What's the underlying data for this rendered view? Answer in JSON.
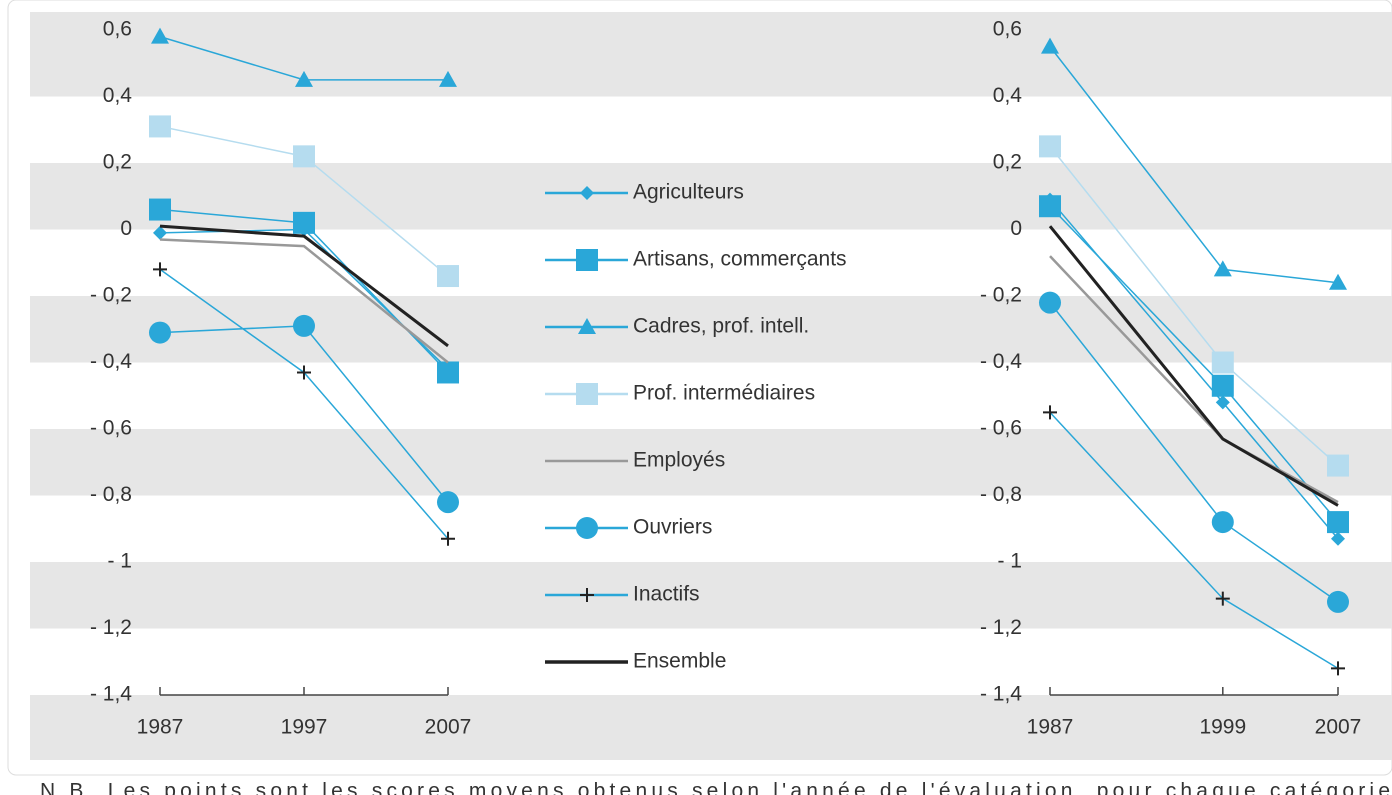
{
  "chart_data": [
    {
      "type": "line",
      "x": [
        1987,
        1997,
        2007
      ],
      "xlim": [
        1987,
        2007
      ],
      "xticks": [
        1987,
        1997,
        2007
      ],
      "ylim": [
        -1.4,
        0.6
      ],
      "yticks": [
        {
          "value": 0.6,
          "label": "0,6"
        },
        {
          "value": 0.4,
          "label": "0,4"
        },
        {
          "value": 0.2,
          "label": "0,2"
        },
        0,
        {
          "value": -0.2,
          "label": "- 0,2"
        },
        {
          "value": -0.4,
          "label": "- 0,4"
        },
        {
          "value": -0.6,
          "label": "- 0,6"
        },
        {
          "value": -0.8,
          "label": "- 0,8"
        },
        {
          "value": -1,
          "label": "- 1"
        },
        {
          "value": -1.2,
          "label": "- 1,2"
        },
        {
          "value": -1.4,
          "label": "- 1,4"
        }
      ],
      "series": [
        {
          "name": "Agriculteurs",
          "color": "#2aa7d8",
          "marker": "diamond",
          "values": [
            -0.01,
            0.0,
            -0.42
          ]
        },
        {
          "name": "Artisans, commerçants",
          "color": "#2aa7d8",
          "marker": "square",
          "values": [
            0.06,
            0.02,
            -0.43
          ]
        },
        {
          "name": "Cadres, prof. intell.",
          "color": "#2aa7d8",
          "marker": "triangle",
          "values": [
            0.58,
            0.45,
            0.45
          ]
        },
        {
          "name": "Prof. intermédiaires",
          "color": "#b5dcef",
          "marker": "square",
          "values": [
            0.31,
            0.22,
            -0.14
          ]
        },
        {
          "name": "Employés",
          "color": "#999999",
          "marker": "none",
          "values": [
            -0.03,
            -0.05,
            -0.4
          ]
        },
        {
          "name": "Ouvriers",
          "color": "#2aa7d8",
          "marker": "circle",
          "values": [
            -0.31,
            -0.29,
            -0.82
          ]
        },
        {
          "name": "Inactifs",
          "color": "#2aa7d8",
          "marker": "plus",
          "values": [
            -0.12,
            -0.43,
            -0.93
          ]
        },
        {
          "name": "Ensemble",
          "color": "#222222",
          "marker": "none",
          "values": [
            0.01,
            -0.02,
            -0.35
          ]
        }
      ]
    },
    {
      "type": "line",
      "x": [
        1987,
        1999,
        2007
      ],
      "xlim": [
        1987,
        2007
      ],
      "xticks": [
        1987,
        1999,
        2007
      ],
      "ylim": [
        -1.4,
        0.6
      ],
      "yticks": [
        {
          "value": 0.6,
          "label": "0,6"
        },
        {
          "value": 0.4,
          "label": "0,4"
        },
        {
          "value": 0.2,
          "label": "0,2"
        },
        0,
        {
          "value": -0.2,
          "label": "- 0,2"
        },
        {
          "value": -0.4,
          "label": "- 0,4"
        },
        {
          "value": -0.6,
          "label": "- 0,6"
        },
        {
          "value": -0.8,
          "label": "- 0,8"
        },
        {
          "value": -1,
          "label": "- 1"
        },
        {
          "value": -1.2,
          "label": "- 1,2"
        },
        {
          "value": -1.4,
          "label": "- 1,4"
        }
      ],
      "series": [
        {
          "color": "#2aa7d8",
          "marker": "diamond",
          "values": [
            0.09,
            -0.52,
            -0.93
          ]
        },
        {
          "color": "#2aa7d8",
          "marker": "square",
          "values": [
            0.07,
            -0.47,
            -0.88
          ]
        },
        {
          "color": "#2aa7d8",
          "marker": "triangle",
          "values": [
            0.55,
            -0.12,
            -0.16
          ]
        },
        {
          "color": "#b5dcef",
          "marker": "square",
          "values": [
            0.25,
            -0.4,
            -0.71
          ]
        },
        {
          "color": "#999999",
          "marker": "none",
          "values": [
            -0.08,
            -0.63,
            -0.82
          ]
        },
        {
          "color": "#2aa7d8",
          "marker": "circle",
          "values": [
            -0.22,
            -0.88,
            -1.12
          ]
        },
        {
          "color": "#2aa7d8",
          "marker": "plus",
          "values": [
            -0.55,
            -1.11,
            -1.32
          ]
        },
        {
          "color": "#222222",
          "marker": "none",
          "values": [
            0.01,
            -0.63,
            -0.83
          ]
        }
      ]
    }
  ],
  "note": "N.B. Les points sont les scores moyens obtenus selon l'année de l'évaluation, pour chaque catégorie"
}
